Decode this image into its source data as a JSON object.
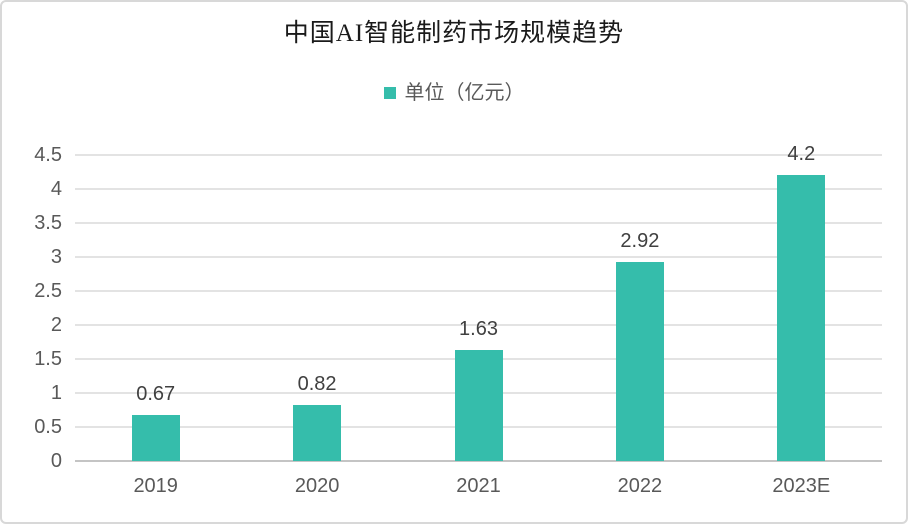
{
  "chart_data": {
    "type": "bar",
    "title": "中国AI智能制药市场规模趋势",
    "legend": "单位（亿元）",
    "legend_position": "top",
    "categories": [
      "2019",
      "2020",
      "2021",
      "2022",
      "2023E"
    ],
    "values": [
      0.67,
      0.82,
      1.63,
      2.92,
      4.2
    ],
    "value_labels": [
      "0.67",
      "0.82",
      "1.63",
      "2.92",
      "4.2"
    ],
    "xlabel": "",
    "ylabel": "",
    "ylim": [
      0,
      4.5
    ],
    "ytick_step": 0.5,
    "yticks": [
      "0",
      "0.5",
      "1",
      "1.5",
      "2",
      "2.5",
      "3",
      "3.5",
      "4",
      "4.5"
    ],
    "grid": true
  },
  "colors": {
    "bar": "#35BDAB",
    "gridline": "#E3E3E3",
    "axis_line": "#C4C4C4",
    "tick_text": "#595959",
    "value_label_text": "#404040",
    "title_text": "#1A1A1A",
    "legend_text": "#595959",
    "frame_border": "#D8D8D8",
    "background": "#FFFFFF"
  }
}
